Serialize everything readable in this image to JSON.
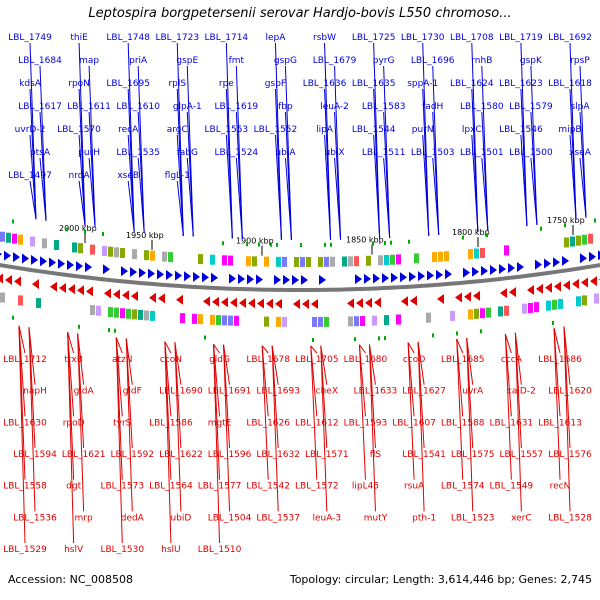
{
  "title": "Leptospira borgpetersenii serovar Hardjo-bovis L550 chromoso...",
  "footer": {
    "accession": "Accession: NC_008508",
    "summary": "Topology: circular; Length: 3,614,446 bp; Genes: 2,745"
  },
  "colors": {
    "forward": "#0000dd",
    "reverse": "#e00000",
    "backbone": "#777777",
    "tick": "#000000"
  },
  "ruler": [
    "2000 kbp",
    "1950 kbp",
    "1900 kbp",
    "1850 kbp",
    "1800 kbp",
    "1750 kbp"
  ],
  "forward_labels": [
    "LBL_1749",
    "thiE",
    "LBL_1748",
    "LBL_1723",
    "LBL_1714",
    "lepA",
    "rsbW",
    "LBL_1725",
    "LBL_1730",
    "LBL_1708",
    "LBL_1719",
    "LBL_1692",
    "LBL_1684",
    "map",
    "priA",
    "gspE",
    "fmt",
    "gspG",
    "LBL_1679",
    "pyrG",
    "LBL_1696",
    "rnhB",
    "gspK",
    "rpsP",
    "kdsA",
    "rpoN",
    "LBL_1695",
    "rplS",
    "rpe",
    "gspF",
    "LBL_1636",
    "LBL_1635",
    "sppA-1",
    "LBL_1624",
    "LBL_1623",
    "LBL_1618",
    "LBL_1617",
    "LBL_1611",
    "LBL_1610",
    "glpA-1",
    "LBL_1619",
    "fbp",
    "leuA-2",
    "LBL_1583",
    "fadH",
    "LBL_1580",
    "LBL_1579",
    "slpA",
    "uvrD-2",
    "LBL_1570",
    "recA",
    "argC",
    "LBL_1553",
    "LBL_1552",
    "lipA",
    "LBL_1544",
    "purN",
    "lpxC",
    "LBL_1546",
    "mipB",
    "ptsA",
    "purH",
    "LBL_1535",
    "fabG",
    "LBL_1524",
    "ubiA",
    "ubiX",
    "LBL_1511",
    "LBL_1503",
    "LBL_1501",
    "LBL_1500",
    "xseA",
    "LBL_1497",
    "nrdA",
    "xseB",
    "flgL-1"
  ],
  "reverse_labels": [
    "LBL_1712",
    "trxB",
    "atzN",
    "ccoN",
    "gldG",
    "LBL_1678",
    "LBL_1705",
    "LBL_1680",
    "ccoO",
    "LBL_1685",
    "cccA",
    "LBL_1686",
    "napH",
    "gldA",
    "gldF",
    "LBL_1690",
    "LBL_1691",
    "LBL_1693",
    "cheX",
    "LBL_1633",
    "LBL_1627",
    "uvrA",
    "caiD-2",
    "LBL_1620",
    "LBL_1630",
    "rpoD",
    "tyrS",
    "LBL_1586",
    "mgtE",
    "LBL_1626",
    "LBL_1612",
    "LBL_1593",
    "LBL_1607",
    "LBL_1588",
    "LBL_1631",
    "LBL_1613",
    "LBL_1594",
    "LBL_1621",
    "LBL_1592",
    "LBL_1622",
    "LBL_1596",
    "LBL_1632",
    "LBL_1571",
    "flS",
    "LBL_1541",
    "LBL_1575",
    "LBL_1557",
    "LBL_1576",
    "LBL_1558",
    "dgt",
    "LBL_1573",
    "LBL_1564",
    "LBL_1577",
    "LBL_1542",
    "LBL_1572",
    "lipL45",
    "rsuA",
    "LBL_1574",
    "LBL_1549",
    "recN",
    "LBL_1536",
    "mrp",
    "dedA",
    "ubiD",
    "LBL_1504",
    "LBL_1537",
    "leuA-3",
    "mutY",
    "pth-1",
    "LBL_1523",
    "xerC",
    "LBL_1528",
    "LBL_1529",
    "hslV",
    "LBL_1530",
    "hslU",
    "LBL_1510"
  ]
}
